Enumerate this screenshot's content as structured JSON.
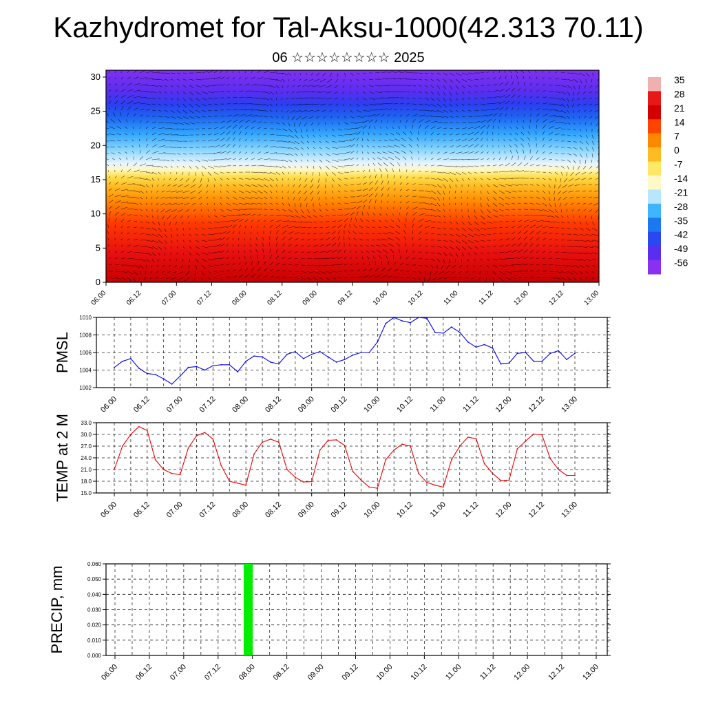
{
  "title": "Kazhydromet for Tal-Aksu-1000(42.313 70.11)",
  "subtitle": "06 ☆☆☆☆☆☆☆☆ 2025",
  "time_labels": [
    "06.00",
    "06.12",
    "07.00",
    "07.12",
    "08.00",
    "08.12",
    "09.00",
    "09.12",
    "10.00",
    "10.12",
    "11.00",
    "11.12",
    "12.00",
    "12.12",
    "13.00"
  ],
  "chart_data": [
    {
      "type": "heatmap",
      "title": "",
      "x": [
        "06.00",
        "06.12",
        "07.00",
        "07.12",
        "08.00",
        "08.12",
        "09.00",
        "09.12",
        "10.00",
        "10.12",
        "11.00",
        "11.12",
        "12.00",
        "12.12",
        "13.00"
      ],
      "ylim": [
        0,
        31
      ],
      "y_ticks": [
        0,
        5,
        10,
        15,
        20,
        25,
        30
      ],
      "colorbar_labels": [
        "35",
        "28",
        "21",
        "14",
        "7",
        "0",
        "-7",
        "-14",
        "-21",
        "-28",
        "-35",
        "-42",
        "-49",
        "-56"
      ],
      "colorbar_colors": [
        "#f0b0b0",
        "#e81818",
        "#d40000",
        "#ff4400",
        "#ff8800",
        "#ffbb22",
        "#ffe866",
        "#fff8c8",
        "#b8e6ff",
        "#3fb4ff",
        "#1a78f0",
        "#2a48f0",
        "#5a2ef0",
        "#8a30f0"
      ],
      "overlay": "wind vectors",
      "grid": false
    },
    {
      "type": "line",
      "ylabel": "PMSL",
      "ylim": [
        1002,
        1010
      ],
      "y_ticks": [
        1002,
        1004,
        1006,
        1008,
        1010
      ],
      "grid": true,
      "series": [
        {
          "color": "#0000ff",
          "x_hours": [
            0,
            6,
            12,
            18,
            24,
            30,
            36,
            42,
            48,
            54,
            60,
            66,
            72,
            78,
            84,
            90,
            96,
            102,
            108,
            114,
            120,
            126,
            132,
            138,
            144,
            150,
            156,
            162,
            168,
            174,
            180,
            186,
            192,
            198,
            204,
            210,
            216,
            222,
            228,
            234,
            240,
            246,
            252,
            258,
            264,
            270,
            276,
            282,
            288,
            294,
            300,
            306,
            312,
            318,
            324,
            330,
            336
          ],
          "values": [
            1004.3,
            1005.0,
            1005.3,
            1004.2,
            1003.6,
            1003.5,
            1003.0,
            1002.4,
            1003.3,
            1004.3,
            1004.4,
            1004.0,
            1004.5,
            1004.6,
            1004.6,
            1003.8,
            1005.0,
            1005.6,
            1005.5,
            1004.9,
            1004.7,
            1005.8,
            1006.1,
            1005.3,
            1005.8,
            1006.1,
            1005.5,
            1004.9,
            1005.2,
            1005.7,
            1006.0,
            1006.0,
            1007.2,
            1009.3,
            1010.0,
            1009.6,
            1009.4,
            1010.0,
            1009.9,
            1008.3,
            1008.2,
            1008.9,
            1008.3,
            1007.2,
            1006.6,
            1006.9,
            1006.5,
            1004.7,
            1004.8,
            1005.9,
            1006.0,
            1005.0,
            1005.0,
            1005.9,
            1006.2,
            1005.2,
            1005.9
          ]
        }
      ]
    },
    {
      "type": "line",
      "ylabel": "TEMP at 2 M",
      "ylim": [
        15,
        33
      ],
      "y_ticks": [
        "15.0",
        "18.0",
        "21.0",
        "24.0",
        "27.0",
        "30.0",
        "33.0"
      ],
      "grid": true,
      "series": [
        {
          "color": "#ee0000",
          "x_hours": [
            0,
            6,
            12,
            18,
            24,
            30,
            36,
            42,
            48,
            54,
            60,
            66,
            72,
            78,
            84,
            90,
            96,
            102,
            108,
            114,
            120,
            126,
            132,
            138,
            144,
            150,
            156,
            162,
            168,
            174,
            180,
            186,
            192,
            198,
            204,
            210,
            216,
            222,
            228,
            234,
            240,
            246,
            252,
            258,
            264,
            270,
            276,
            282,
            288,
            294,
            300,
            306,
            312,
            318,
            324,
            330,
            336
          ],
          "values": [
            21.0,
            27.0,
            30.0,
            32.0,
            31.0,
            23.5,
            21.0,
            20.0,
            19.7,
            26.5,
            29.7,
            30.5,
            28.8,
            22.0,
            18.0,
            17.5,
            17.0,
            25.0,
            28.0,
            28.8,
            28.0,
            21.0,
            19.0,
            17.8,
            17.9,
            26.0,
            28.5,
            28.6,
            27.2,
            20.5,
            18.3,
            16.5,
            16.2,
            23.5,
            26.0,
            27.5,
            27.0,
            20.0,
            17.7,
            17.0,
            16.5,
            23.5,
            27.0,
            29.3,
            28.9,
            22.5,
            20.0,
            18.2,
            18.3,
            26.3,
            28.3,
            30.1,
            29.9,
            23.8,
            21.0,
            19.5,
            19.5
          ]
        }
      ]
    },
    {
      "type": "bar",
      "ylabel": "PRECIP, mm",
      "ylim": [
        0,
        0.06
      ],
      "y_ticks": [
        "0.000",
        "0.010",
        "0.020",
        "0.030",
        "0.040",
        "0.050",
        "0.060"
      ],
      "grid": true,
      "bar_color": "#00ee00",
      "bars": [
        {
          "x_hour": 93,
          "value": 0.06
        }
      ]
    }
  ]
}
